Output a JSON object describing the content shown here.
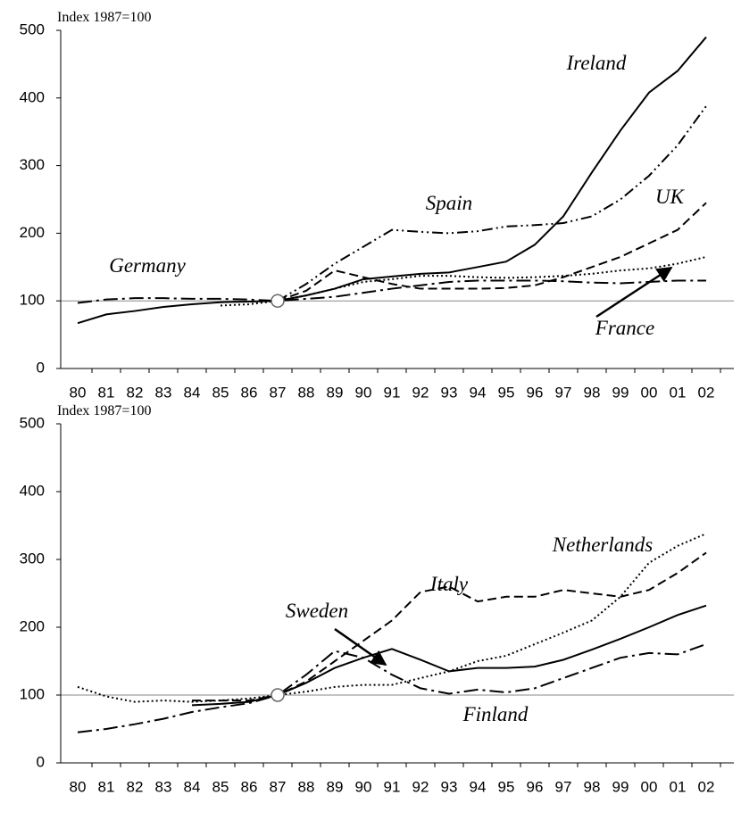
{
  "chart_data": [
    {
      "type": "line",
      "y_label": "Index 1987=100",
      "categories": [
        "80",
        "81",
        "82",
        "83",
        "84",
        "85",
        "86",
        "87",
        "88",
        "89",
        "90",
        "91",
        "92",
        "93",
        "94",
        "95",
        "96",
        "97",
        "98",
        "99",
        "00",
        "01",
        "02"
      ],
      "ylim": [
        0,
        500
      ],
      "yticks": [
        0,
        100,
        200,
        300,
        400,
        500
      ],
      "hline": 100,
      "color": "#000000",
      "series": [
        {
          "name": "Ireland",
          "dash": "solid",
          "values": [
            67,
            80,
            85,
            91,
            95,
            98,
            99,
            100,
            108,
            118,
            132,
            136,
            140,
            142,
            150,
            158,
            183,
            225,
            290,
            352,
            408,
            440,
            490
          ]
        },
        {
          "name": "Spain",
          "dash": "dash-dot-dot",
          "values": [
            null,
            null,
            null,
            null,
            null,
            null,
            null,
            100,
            125,
            155,
            180,
            205,
            202,
            200,
            203,
            210,
            212,
            215,
            225,
            250,
            285,
            330,
            388
          ]
        },
        {
          "name": "UK",
          "dash": "dashed",
          "values": [
            null,
            null,
            null,
            null,
            null,
            null,
            null,
            100,
            115,
            145,
            135,
            125,
            118,
            118,
            118,
            119,
            123,
            135,
            150,
            165,
            185,
            205,
            245
          ]
        },
        {
          "name": "France",
          "dash": "dotted",
          "values": [
            null,
            null,
            null,
            null,
            null,
            93,
            95,
            100,
            108,
            118,
            128,
            132,
            137,
            137,
            135,
            134,
            135,
            137,
            140,
            145,
            148,
            155,
            165
          ]
        },
        {
          "name": "Germany",
          "dash": "long-dash-dot",
          "values": [
            97,
            102,
            104,
            104,
            103,
            103,
            102,
            100,
            103,
            106,
            112,
            118,
            123,
            128,
            130,
            130,
            130,
            129,
            127,
            126,
            128,
            130,
            130
          ]
        }
      ]
    },
    {
      "type": "line",
      "y_label": "Index 1987=100",
      "categories": [
        "80",
        "81",
        "82",
        "83",
        "84",
        "85",
        "86",
        "87",
        "88",
        "89",
        "90",
        "91",
        "92",
        "93",
        "94",
        "95",
        "96",
        "97",
        "98",
        "99",
        "00",
        "01",
        "02"
      ],
      "ylim": [
        0,
        500
      ],
      "yticks": [
        0,
        100,
        200,
        300,
        400,
        500
      ],
      "hline": 100,
      "color": "#000000",
      "series": [
        {
          "name": "Netherlands",
          "dash": "dotted",
          "values": [
            112,
            98,
            90,
            92,
            90,
            92,
            95,
            100,
            105,
            112,
            115,
            115,
            125,
            135,
            150,
            158,
            175,
            192,
            210,
            245,
            295,
            320,
            338
          ]
        },
        {
          "name": "Italy",
          "dash": "dashed",
          "values": [
            null,
            null,
            null,
            null,
            92,
            92,
            92,
            100,
            120,
            150,
            180,
            210,
            252,
            260,
            238,
            245,
            245,
            255,
            250,
            245,
            255,
            280,
            310
          ]
        },
        {
          "name": "Sweden",
          "dash": "solid",
          "values": [
            null,
            null,
            null,
            null,
            85,
            87,
            90,
            100,
            118,
            140,
            155,
            168,
            152,
            135,
            140,
            140,
            142,
            152,
            167,
            183,
            200,
            218,
            232
          ]
        },
        {
          "name": "Finland",
          "dash": "long-dash-dot",
          "values": [
            45,
            50,
            57,
            65,
            75,
            82,
            88,
            100,
            130,
            165,
            155,
            130,
            110,
            102,
            108,
            104,
            110,
            125,
            140,
            155,
            162,
            160,
            175
          ]
        }
      ]
    }
  ]
}
